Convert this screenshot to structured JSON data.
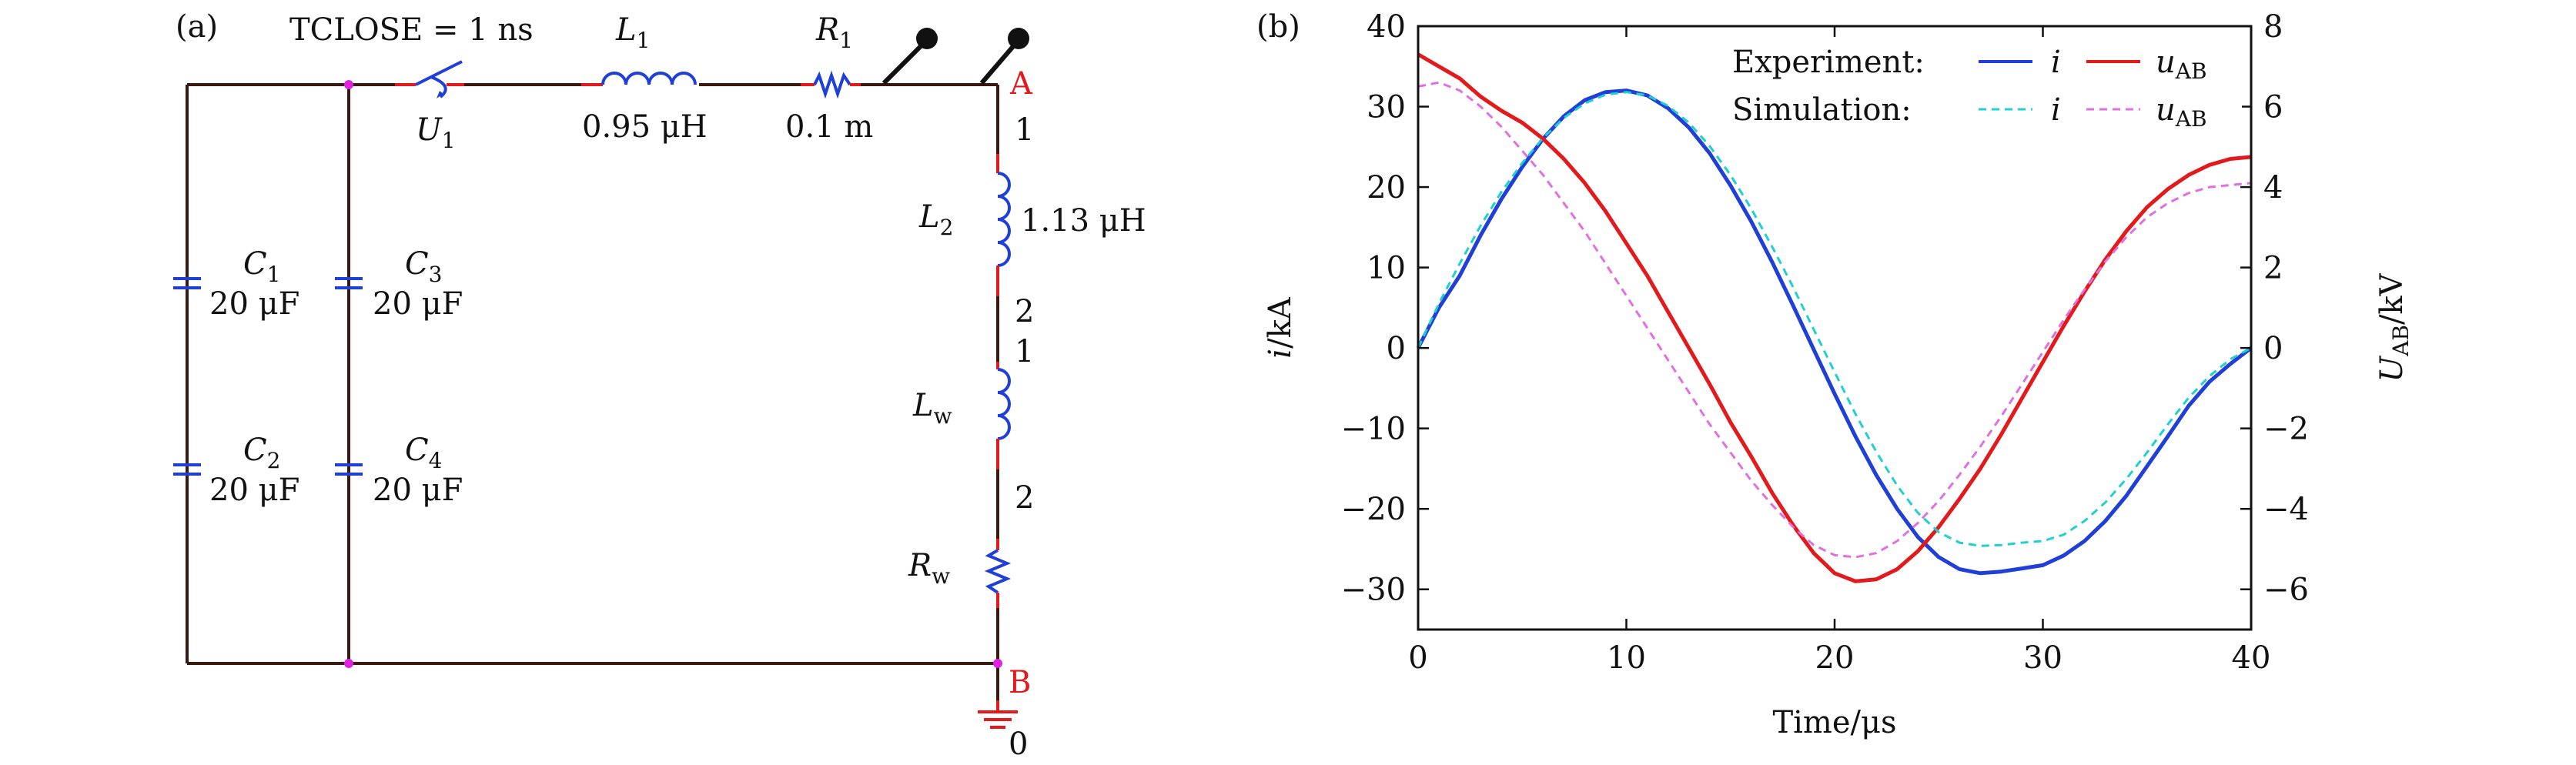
{
  "panel_a": {
    "panel_label": "(a)",
    "switch_label": "TCLOSE = 1 ns",
    "switch_name": "U",
    "switch_sub": "1",
    "l1_name": "L",
    "l1_sub": "1",
    "l1_value": "0.95 μH",
    "r1_name": "R",
    "r1_sub": "1",
    "r1_value": "0.1  m",
    "node_a": "A",
    "node_b": "B",
    "ground_label": "0",
    "l2_name": "L",
    "l2_sub": "2",
    "l2_value": "1.13 μH",
    "lw_name": "L",
    "lw_sub": "w",
    "rw_name": "R",
    "rw_sub": "w",
    "pin_1": "1",
    "pin_2": "2",
    "caps": [
      {
        "name": "C",
        "sub": "1",
        "value": "20 μF"
      },
      {
        "name": "C",
        "sub": "2",
        "value": "20 μF"
      },
      {
        "name": "C",
        "sub": "3",
        "value": "20 μF"
      },
      {
        "name": "C",
        "sub": "4",
        "value": "20 μF"
      }
    ],
    "colors": {
      "wire": "#3a1a10",
      "red": "#e31a1c",
      "blue": "#1f3fd8",
      "node": "#e020e0",
      "probe": "#111111"
    }
  },
  "chart_data": {
    "type": "line",
    "panel_label": "(b)",
    "xlabel": "Time/μs",
    "ylabel_left_main": "i",
    "ylabel_left_unit": "/kA",
    "ylabel_right_main": "U",
    "ylabel_right_sub": "AB",
    "ylabel_right_unit": "/kV",
    "xlim": [
      0,
      40
    ],
    "ylim_left": [
      -35,
      40
    ],
    "ylim_right": [
      -7,
      8
    ],
    "x_ticks": [
      0,
      10,
      20,
      30,
      40
    ],
    "x_tick_labels": [
      "0",
      "10",
      "20",
      "30",
      "40"
    ],
    "y_left_ticks": [
      -30,
      -20,
      -10,
      0,
      10,
      20,
      30,
      40
    ],
    "y_left_tick_labels": [
      "−30",
      "−20",
      "−10",
      "0",
      "10",
      "20",
      "30",
      "40"
    ],
    "y_right_ticks": [
      -6,
      -4,
      -2,
      0,
      2,
      4,
      6,
      8
    ],
    "y_right_tick_labels": [
      "−6",
      "−4",
      "−2",
      "0",
      "2",
      "4",
      "6",
      "8"
    ],
    "legend": {
      "experiment_label": "Experiment:",
      "simulation_label": "Simulation:",
      "i_label": "i",
      "u_main": "u",
      "u_sub": "AB"
    },
    "series": [
      {
        "name": "Experiment i",
        "axis": "left",
        "color": "#1f3fd8",
        "dash": "solid",
        "x": [
          0,
          1,
          2,
          3,
          4,
          5,
          6,
          7,
          8,
          9,
          10,
          11,
          12,
          13,
          14,
          15,
          16,
          17,
          18,
          19,
          20,
          21,
          22,
          23,
          24,
          25,
          26,
          27,
          28,
          29,
          30,
          31,
          32,
          33,
          34,
          35,
          36,
          37,
          38,
          39,
          40
        ],
        "y": [
          0,
          5,
          9,
          14,
          18.5,
          22.5,
          26,
          28.8,
          30.8,
          31.8,
          32,
          31.4,
          29.8,
          27.4,
          24.2,
          20.2,
          15.7,
          10.7,
          5.3,
          -0.2,
          -5.7,
          -11,
          -15.8,
          -20,
          -23.5,
          -26,
          -27.5,
          -28,
          -27.8,
          -27.4,
          -27,
          -25.8,
          -24,
          -21.5,
          -18.4,
          -14.7,
          -11,
          -7.2,
          -4.2,
          -2,
          0
        ]
      },
      {
        "name": "Experiment uAB",
        "axis": "right",
        "color": "#e31a1c",
        "dash": "solid",
        "x": [
          0,
          1,
          2,
          3,
          4,
          5,
          6,
          7,
          8,
          9,
          10,
          11,
          12,
          13,
          14,
          15,
          16,
          17,
          18,
          19,
          20,
          21,
          22,
          23,
          24,
          25,
          26,
          27,
          28,
          29,
          30,
          31,
          32,
          33,
          34,
          35,
          36,
          37,
          38,
          39,
          40
        ],
        "y": [
          7.3,
          7.0,
          6.7,
          6.25,
          5.9,
          5.6,
          5.2,
          4.7,
          4.1,
          3.4,
          2.6,
          1.8,
          0.9,
          -0.0,
          -0.9,
          -1.85,
          -2.7,
          -3.6,
          -4.4,
          -5.1,
          -5.6,
          -5.8,
          -5.75,
          -5.5,
          -5.05,
          -4.45,
          -3.75,
          -3.0,
          -2.15,
          -1.25,
          -0.35,
          0.55,
          1.4,
          2.2,
          2.9,
          3.5,
          3.95,
          4.3,
          4.55,
          4.7,
          4.75
        ]
      },
      {
        "name": "Simulation i",
        "axis": "left",
        "color": "#20d0d0",
        "dash": "dashed",
        "x": [
          0,
          1,
          2,
          3,
          4,
          5,
          6,
          7,
          8,
          9,
          10,
          11,
          12,
          13,
          14,
          15,
          16,
          17,
          18,
          19,
          20,
          21,
          22,
          23,
          24,
          25,
          26,
          27,
          28,
          29,
          30,
          31,
          32,
          33,
          34,
          35,
          36,
          37,
          38,
          39,
          40
        ],
        "y": [
          0,
          5.5,
          10.5,
          15.2,
          19.4,
          23,
          26.1,
          28.6,
          30.4,
          31.5,
          31.8,
          31.4,
          30.1,
          28,
          25.1,
          21.5,
          17.3,
          12.6,
          7.6,
          2.3,
          -3,
          -8.2,
          -12.9,
          -17.1,
          -20.5,
          -22.9,
          -24.2,
          -24.6,
          -24.5,
          -24.2,
          -24,
          -23.2,
          -21.5,
          -19.2,
          -16.3,
          -13,
          -9.5,
          -6.2,
          -3.5,
          -1.4,
          0
        ]
      },
      {
        "name": "Simulation uAB",
        "axis": "right",
        "color": "#e070e0",
        "dash": "dashed",
        "x": [
          0,
          1,
          2,
          3,
          4,
          5,
          6,
          7,
          8,
          9,
          10,
          11,
          12,
          13,
          14,
          15,
          16,
          17,
          18,
          19,
          20,
          21,
          22,
          23,
          24,
          25,
          26,
          27,
          28,
          29,
          30,
          31,
          32,
          33,
          34,
          35,
          36,
          37,
          38,
          39,
          40
        ],
        "y": [
          6.5,
          6.6,
          6.4,
          6.0,
          5.5,
          4.9,
          4.3,
          3.6,
          2.9,
          2.1,
          1.3,
          0.5,
          -0.3,
          -1.1,
          -1.9,
          -2.6,
          -3.3,
          -3.9,
          -4.45,
          -4.9,
          -5.15,
          -5.2,
          -5.1,
          -4.8,
          -4.35,
          -3.8,
          -3.15,
          -2.45,
          -1.7,
          -0.9,
          -0.1,
          0.7,
          1.45,
          2.15,
          2.75,
          3.25,
          3.6,
          3.85,
          4.0,
          4.05,
          4.1
        ]
      }
    ]
  }
}
